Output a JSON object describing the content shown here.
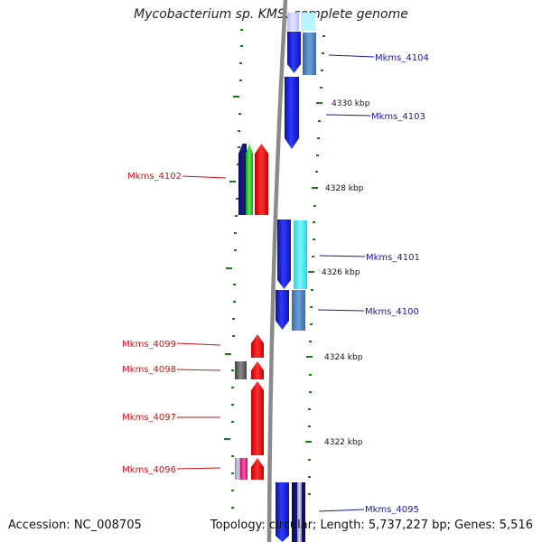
{
  "title": "Mycobacterium sp. KMS, complete genome",
  "accession": "Accession: NC_008705",
  "summary": "Topology: circular; Length: 5,737,227 bp; Genes: 5,516",
  "colors": {
    "backbone": "#8a8a8a",
    "forward_label": "#1a1aa0",
    "reverse_label": "#cc1111",
    "tick": "#1a7a1a",
    "scale_text": "#111111"
  },
  "scale_labels": [
    "4330 kbp",
    "4328 kbp",
    "4326 kbp",
    "4324 kbp",
    "4322 kbp"
  ],
  "genes_forward": [
    {
      "label": "Mkms_4104"
    },
    {
      "label": "Mkms_4103"
    },
    {
      "label": "Mkms_4101"
    },
    {
      "label": "Mkms_4100"
    },
    {
      "label": "Mkms_4095"
    }
  ],
  "genes_reverse": [
    {
      "label": "Mkms_4102"
    },
    {
      "label": "Mkms_4099"
    },
    {
      "label": "Mkms_4098"
    },
    {
      "label": "Mkms_4097"
    },
    {
      "label": "Mkms_4096"
    }
  ]
}
